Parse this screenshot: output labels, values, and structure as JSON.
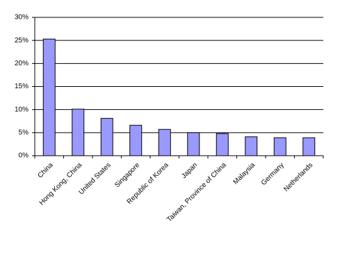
{
  "chart_data": {
    "type": "bar",
    "categories": [
      "China",
      "Hong Kong, China",
      "United States",
      "Singapore",
      "Republic of Korea",
      "Japan",
      "Taiwan, Province of China",
      "Malaysia",
      "Germany",
      "Netherlands"
    ],
    "values": [
      25.3,
      10.1,
      8.1,
      6.6,
      5.7,
      5.0,
      4.8,
      4.1,
      3.9,
      3.9
    ],
    "color": "#9999ff",
    "ylim": [
      0,
      30
    ],
    "yticks": [
      {
        "value": 0,
        "label": "0%"
      },
      {
        "value": 5,
        "label": "5%"
      },
      {
        "value": 10,
        "label": "10%"
      },
      {
        "value": 15,
        "label": "15%"
      },
      {
        "value": 20,
        "label": "20%"
      },
      {
        "value": 25,
        "label": "25%"
      },
      {
        "value": 30,
        "label": "30%"
      }
    ],
    "grid": true
  }
}
